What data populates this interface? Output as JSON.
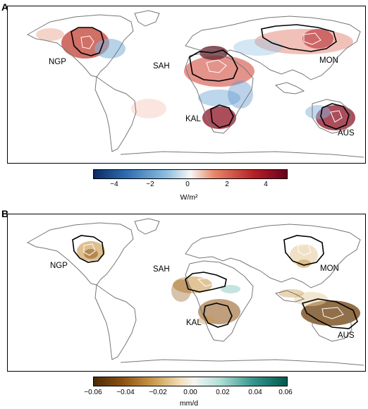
{
  "panel_a": {
    "letter": "A",
    "regions": [
      "NGP",
      "SAH",
      "MON",
      "KAL",
      "AUS"
    ],
    "colorbar": {
      "unit_label": "W/m²",
      "ticks": [
        "−4",
        "−2",
        "0",
        "2",
        "4"
      ],
      "colors": [
        "#0d2a63",
        "#2f6db0",
        "#8fbfe0",
        "#f7f7f7",
        "#e8896b",
        "#b52025",
        "#67001f"
      ]
    }
  },
  "panel_b": {
    "letter": "B",
    "regions": [
      "NGP",
      "SAH",
      "MON",
      "KAL",
      "AUS"
    ],
    "colorbar": {
      "unit_label": "mm/d",
      "ticks": [
        "−0.06",
        "−0.04",
        "−0.02",
        "0.00",
        "0.02",
        "0.04",
        "0.06"
      ],
      "colors": [
        "#4b2a05",
        "#8c5110",
        "#c89546",
        "#f2e0b8",
        "#f5f5f5",
        "#b2e0d8",
        "#35978f",
        "#00594f"
      ]
    }
  }
}
